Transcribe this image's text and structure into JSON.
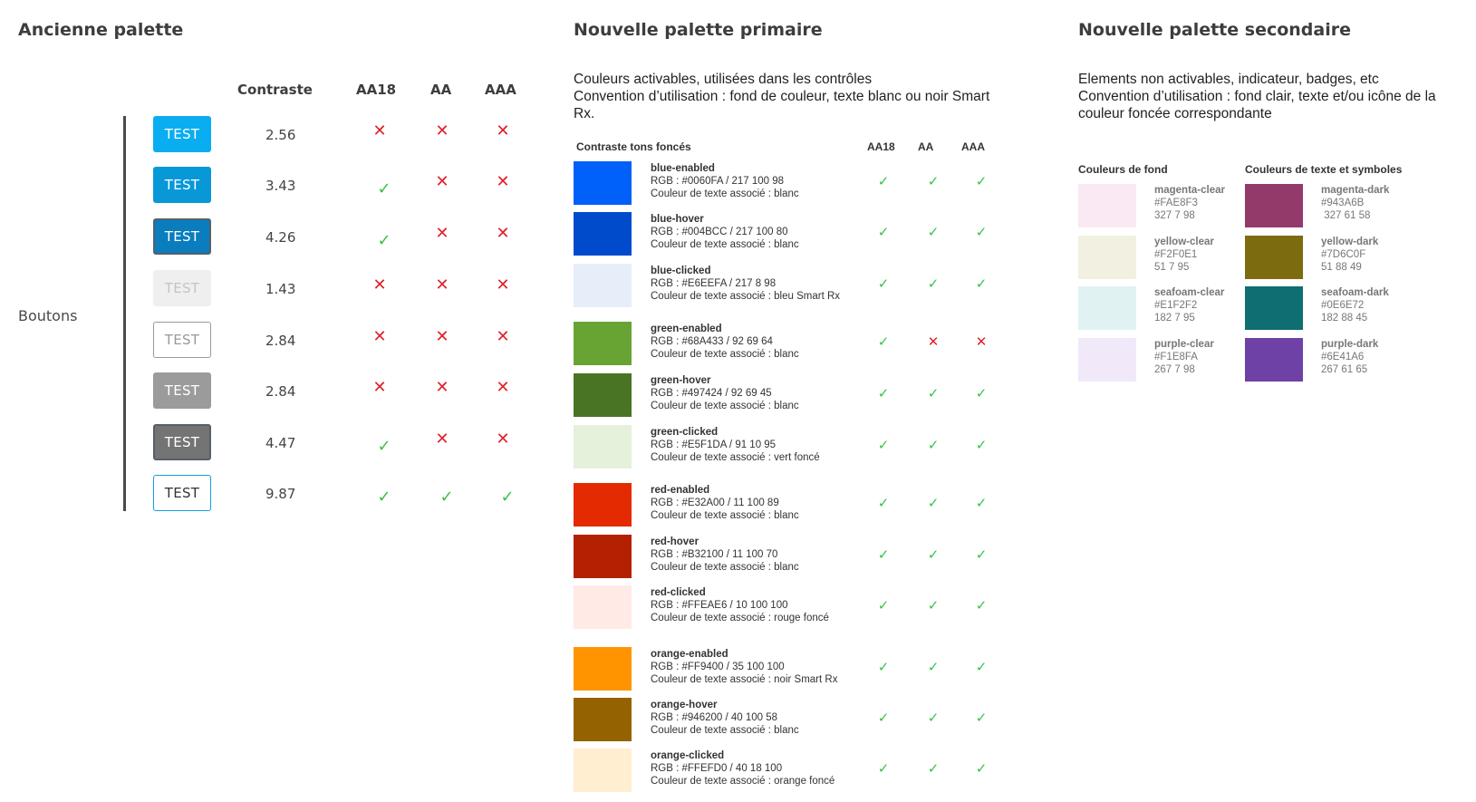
{
  "old_palette": {
    "title": "Ancienne palette",
    "row_label": "Boutons",
    "columns": {
      "contrast": "Contraste",
      "aa18": "AA18",
      "aa": "AA",
      "aaa": "AAA"
    },
    "buttons": [
      {
        "label": "TEST",
        "contrast": "2.56",
        "aa18": "fail",
        "aa": "fail",
        "aaa": "fail",
        "bg": "#0AAEF0",
        "fg": "#ffffff",
        "border": "none"
      },
      {
        "label": "TEST",
        "contrast": "3.43",
        "aa18": "pass",
        "aa": "fail",
        "aaa": "fail",
        "bg": "#0898D8",
        "fg": "#ffffff",
        "border": "none"
      },
      {
        "label": "TEST",
        "contrast": "4.26",
        "aa18": "pass",
        "aa": "fail",
        "aaa": "fail",
        "bg": "#0A7DBE",
        "fg": "#ffffff",
        "border": "2px solid #56606a"
      },
      {
        "label": "TEST",
        "contrast": "1.43",
        "aa18": "fail",
        "aa": "fail",
        "aaa": "fail",
        "bg": "#EFEFEF",
        "fg": "#C4C4C4",
        "border": "none"
      },
      {
        "label": "TEST",
        "contrast": "2.84",
        "aa18": "fail",
        "aa": "fail",
        "aaa": "fail",
        "bg": "#FFFFFF",
        "fg": "#999999",
        "border": "1px solid #999999"
      },
      {
        "label": "TEST",
        "contrast": "2.84",
        "aa18": "fail",
        "aa": "fail",
        "aaa": "fail",
        "bg": "#9B9B9B",
        "fg": "#ffffff",
        "border": "none"
      },
      {
        "label": "TEST",
        "contrast": "4.47",
        "aa18": "pass",
        "aa": "fail",
        "aaa": "fail",
        "bg": "#747474",
        "fg": "#ffffff",
        "border": "2px solid #56606a"
      },
      {
        "label": "TEST",
        "contrast": "9.87",
        "aa18": "pass",
        "aa": "pass",
        "aaa": "pass",
        "bg": "#FFFFFF",
        "fg": "#333333",
        "border": "1px solid #1A9BE0"
      }
    ]
  },
  "primary_palette": {
    "title": "Nouvelle palette primaire",
    "desc_line1": "Couleurs activables, utilisées dans les contrôles",
    "desc_line2": "Convention d’utilisation : fond de couleur, texte blanc ou noir Smart",
    "desc_line3": "Rx.",
    "table_head": "Contraste tons foncés",
    "columns": {
      "aa18": "AA18",
      "aa": "AA",
      "aaa": "AAA"
    },
    "colors": [
      {
        "name": "blue-enabled",
        "rgb": "RGB : #0060FA / 217 100 98",
        "text_color": "Couleur de texte associé : blanc",
        "swatch": "#0060FA",
        "aa18": "pass",
        "aa": "pass",
        "aaa": "pass"
      },
      {
        "name": "blue-hover",
        "rgb": "RGB : #004BCC / 217 100 80",
        "text_color": "Couleur de texte associé : blanc",
        "swatch": "#004BCC",
        "aa18": "pass",
        "aa": "pass",
        "aaa": "pass"
      },
      {
        "name": "blue-clicked",
        "rgb": "RGB : #E6EEFA / 217 8 98",
        "text_color": "Couleur de texte associé : bleu Smart Rx",
        "swatch": "#E6EEFA",
        "aa18": "pass",
        "aa": "pass",
        "aaa": "pass"
      },
      {
        "name": "green-enabled",
        "rgb": "RGB : #68A433 / 92 69 64",
        "text_color": "Couleur de texte associé : blanc",
        "swatch": "#68A433",
        "aa18": "pass",
        "aa": "fail",
        "aaa": "fail"
      },
      {
        "name": "green-hover",
        "rgb": "RGB : #497424 / 92 69 45",
        "text_color": "Couleur de texte associé : blanc",
        "swatch": "#497424",
        "aa18": "pass",
        "aa": "pass",
        "aaa": "pass"
      },
      {
        "name": "green-clicked",
        "rgb": "RGB : #E5F1DA / 91 10 95",
        "text_color": "Couleur de texte associé : vert foncé",
        "swatch": "#E5F1DA",
        "aa18": "pass",
        "aa": "pass",
        "aaa": "pass"
      },
      {
        "name": "red-enabled",
        "rgb": "RGB : #E32A00 / 11 100 89",
        "text_color": "Couleur de texte associé : blanc",
        "swatch": "#E32A00",
        "aa18": "pass",
        "aa": "pass",
        "aaa": "pass"
      },
      {
        "name": "red-hover",
        "rgb": "RGB : #B32100 / 11 100 70",
        "text_color": "Couleur de texte associé : blanc",
        "swatch": "#B32100",
        "aa18": "pass",
        "aa": "pass",
        "aaa": "pass"
      },
      {
        "name": "red-clicked",
        "rgb": "RGB : #FFEAE6 / 10 100 100",
        "text_color": "Couleur de texte associé : rouge foncé",
        "swatch": "#FFEAE6",
        "aa18": "pass",
        "aa": "pass",
        "aaa": "pass"
      },
      {
        "name": "orange-enabled",
        "rgb": "RGB : #FF9400 / 35 100 100",
        "text_color": "Couleur de texte associé : noir Smart Rx",
        "swatch": "#FF9400",
        "aa18": "pass",
        "aa": "pass",
        "aaa": "pass"
      },
      {
        "name": "orange-hover",
        "rgb": "RGB : #946200 / 40 100 58",
        "text_color": "Couleur de texte associé : blanc",
        "swatch": "#946200",
        "aa18": "pass",
        "aa": "pass",
        "aaa": "pass"
      },
      {
        "name": "orange-clicked",
        "rgb": "RGB : #FFEFD0 / 40 18 100",
        "text_color": "Couleur de texte associé : orange foncé",
        "swatch": "#FFEFD0",
        "aa18": "pass",
        "aa": "pass",
        "aaa": "pass"
      }
    ]
  },
  "secondary_palette": {
    "title": "Nouvelle palette secondaire",
    "desc_line1": "Elements non activables, indicateur, badges, etc",
    "desc_line2": "Convention d’utilisation : fond clair, texte et/ou icône de la",
    "desc_line3": "couleur foncée correspondante",
    "bg_head": "Couleurs de fond",
    "fg_head": "Couleurs de texte et symboles",
    "backgrounds": [
      {
        "name": "magenta-clear",
        "hex": "#FAE8F3",
        "hsv": "327 7 98",
        "swatch": "#FAE8F3"
      },
      {
        "name": "yellow-clear",
        "hex": "#F2F0E1",
        "hsv": "51 7 95",
        "swatch": "#F2F0E1"
      },
      {
        "name": "seafoam-clear",
        "hex": "#E1F2F2",
        "hsv": "182 7 95",
        "swatch": "#E1F2F2"
      },
      {
        "name": "purple-clear",
        "hex": "#F1E8FA",
        "hsv": "267 7 98",
        "swatch": "#F1E8FA"
      }
    ],
    "foregrounds": [
      {
        "name": "magenta-dark",
        "hex": "#943A6B",
        "hsv": " 327 61 58",
        "swatch": "#943A6B"
      },
      {
        "name": "yellow-dark",
        "hex": "#7D6C0F",
        "hsv": "51 88 49",
        "swatch": "#7D6C0F"
      },
      {
        "name": "seafoam-dark",
        "hex": "#0E6E72",
        "hsv": "182 88 45",
        "swatch": "#0E6E72"
      },
      {
        "name": "purple-dark",
        "hex": "#6E41A6",
        "hsv": "267 61 65",
        "swatch": "#6E41A6"
      }
    ]
  }
}
